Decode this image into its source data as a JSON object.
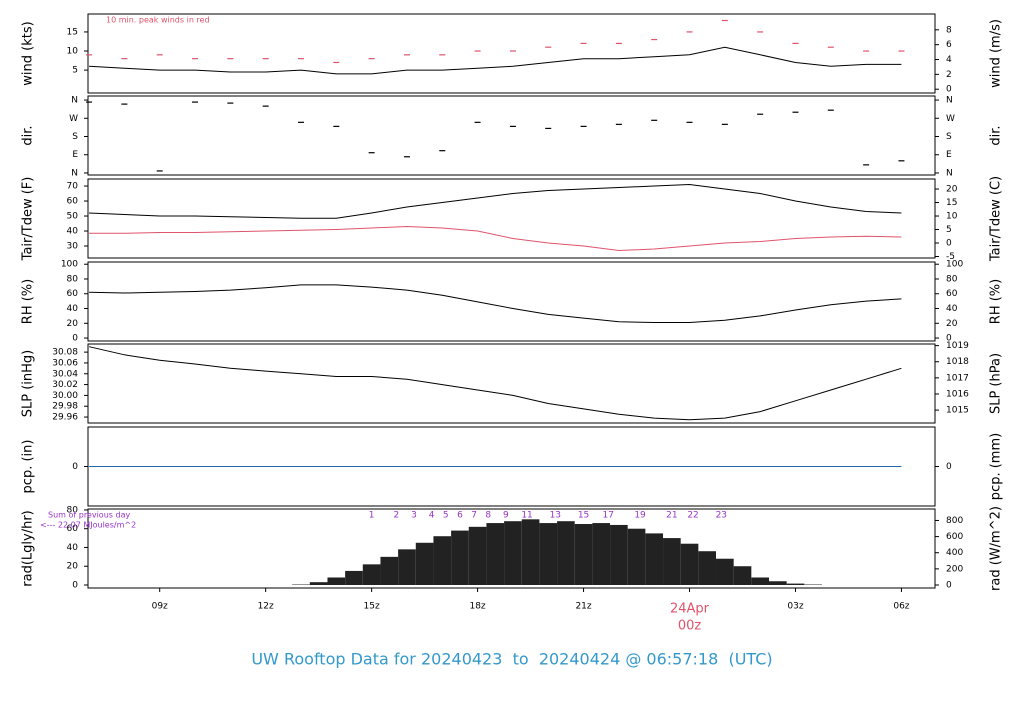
{
  "chart_data": [
    {
      "type": "line",
      "ylabel": "wind (kts)",
      "y2label": "wind (m/s)",
      "annotation": "10 min. peak winds in red",
      "ylim": [
        -1,
        19.7
      ],
      "yticks": [
        5,
        10,
        15
      ],
      "y2lim": [
        -0.51,
        10.13
      ],
      "y2ticks": [
        0,
        2,
        4,
        6,
        8
      ],
      "x": [
        7,
        8,
        9,
        10,
        11,
        12,
        13,
        14,
        15,
        16,
        17,
        18,
        19,
        20,
        21,
        22,
        23,
        24,
        25,
        26,
        27,
        28,
        29,
        30
      ],
      "series": [
        {
          "color": "#000000",
          "marker": "line",
          "values": [
            6,
            5.5,
            5,
            5,
            4.5,
            4.5,
            5,
            4,
            4,
            5,
            5,
            5.5,
            6,
            7,
            8,
            8,
            8.5,
            9,
            11,
            9,
            7,
            6,
            6.5,
            6.5
          ]
        },
        {
          "color": "#df536b",
          "marker": "dash",
          "values": [
            9,
            8,
            9,
            8,
            8,
            8,
            8,
            7,
            8,
            9,
            9,
            10,
            10,
            11,
            12,
            12,
            13,
            15,
            18,
            15,
            12,
            11,
            10,
            10
          ]
        }
      ]
    },
    {
      "type": "scatter",
      "ylabel": "dir.",
      "y2label": "dir.",
      "ylim": [
        -10,
        380
      ],
      "yticks": [
        {
          "value": 0,
          "label": "N"
        },
        {
          "value": 90,
          "label": "E"
        },
        {
          "value": 180,
          "label": "S"
        },
        {
          "value": 270,
          "label": "W"
        },
        {
          "value": 360,
          "label": "N"
        }
      ],
      "y2lim": [
        -10,
        380
      ],
      "y2ticks": [
        {
          "value": 0,
          "label": "N"
        },
        {
          "value": 90,
          "label": "E"
        },
        {
          "value": 180,
          "label": "S"
        },
        {
          "value": 270,
          "label": "W"
        },
        {
          "value": 360,
          "label": "N"
        }
      ],
      "x": [
        7,
        8,
        9,
        10,
        11,
        12,
        13,
        14,
        15,
        16,
        17,
        18,
        19,
        20,
        21,
        22,
        23,
        24,
        25,
        26,
        27,
        28,
        29,
        30
      ],
      "series": [
        {
          "color": "#000000",
          "marker": "dash",
          "values": [
            350,
            340,
            10,
            350,
            345,
            330,
            250,
            230,
            100,
            80,
            110,
            250,
            230,
            220,
            230,
            240,
            260,
            250,
            240,
            290,
            300,
            310,
            40,
            60
          ]
        }
      ]
    },
    {
      "type": "line",
      "ylabel": "Tair/Tdew (F)",
      "y2label": "Tair/Tdew (C)",
      "ylim": [
        22,
        74.7
      ],
      "yticks": [
        30,
        40,
        50,
        60,
        70
      ],
      "y2lim": [
        -5.56,
        23.72
      ],
      "y2ticks": [
        -5,
        0,
        5,
        10,
        15,
        20
      ],
      "x": [
        7,
        8,
        9,
        10,
        11,
        12,
        13,
        14,
        15,
        16,
        17,
        18,
        19,
        20,
        21,
        22,
        23,
        24,
        25,
        26,
        27,
        28,
        29,
        30
      ],
      "series": [
        {
          "color": "#000000",
          "marker": "line",
          "values": [
            52,
            51,
            50,
            50,
            49.5,
            49,
            48.5,
            48.5,
            52,
            56,
            59,
            62,
            65,
            67,
            68,
            69,
            70,
            71,
            68,
            65,
            60,
            56,
            53,
            52
          ]
        },
        {
          "color": "#df536b",
          "marker": "line",
          "values": [
            38.5,
            38.5,
            39,
            39,
            39.5,
            40,
            40.5,
            41,
            42,
            43,
            42,
            40,
            35,
            32,
            30,
            27,
            28,
            30,
            32,
            33,
            35,
            36,
            36.5,
            36
          ]
        }
      ]
    },
    {
      "type": "line",
      "ylabel": "RH (%)",
      "y2label": "RH (%)",
      "ylim": [
        -4,
        103
      ],
      "yticks": [
        0,
        20,
        40,
        60,
        80,
        100
      ],
      "y2lim": [
        -4,
        103
      ],
      "y2ticks": [
        0,
        20,
        40,
        60,
        80,
        100
      ],
      "x": [
        7,
        8,
        9,
        10,
        11,
        12,
        13,
        14,
        15,
        16,
        17,
        18,
        19,
        20,
        21,
        22,
        23,
        24,
        25,
        26,
        27,
        28,
        29,
        30
      ],
      "series": [
        {
          "color": "#000000",
          "marker": "line",
          "values": [
            62,
            61,
            62,
            63,
            65,
            68,
            72,
            72,
            69,
            65,
            58,
            49,
            40,
            32,
            27,
            22,
            21,
            21,
            24,
            30,
            38,
            45,
            50,
            53
          ]
        }
      ]
    },
    {
      "type": "line",
      "ylabel": "SLP (inHg)",
      "y2label": "SLP (hPa)",
      "ylim": [
        29.949,
        30.095
      ],
      "yticks": [
        29.96,
        29.98,
        {
          "value": 30,
          "label": "30.00"
        },
        30.02,
        30.04,
        30.06,
        30.08
      ],
      "y2lim": [
        1014.2,
        1019.1
      ],
      "y2ticks": [
        1015,
        1016,
        1017,
        1018,
        1019
      ],
      "x": [
        7,
        8,
        9,
        10,
        11,
        12,
        13,
        14,
        15,
        16,
        17,
        18,
        19,
        20,
        21,
        22,
        23,
        24,
        25,
        26,
        27,
        28,
        29,
        30
      ],
      "series": [
        {
          "color": "#000000",
          "marker": "line",
          "values": [
            30.09,
            30.075,
            30.065,
            30.058,
            30.05,
            30.045,
            30.04,
            30.035,
            30.035,
            30.03,
            30.02,
            30.01,
            30.0,
            29.985,
            29.975,
            29.965,
            29.958,
            29.955,
            29.958,
            29.97,
            29.99,
            30.01,
            30.03,
            30.05
          ]
        }
      ]
    },
    {
      "type": "line",
      "ylabel": "pcp. (in)",
      "y2label": "pcp. (mm)",
      "ylim": [
        -1,
        1
      ],
      "yticks": [
        0
      ],
      "y2lim": [
        -1,
        1
      ],
      "y2ticks": [
        0
      ],
      "x": [
        7,
        8,
        9,
        10,
        11,
        12,
        13,
        14,
        15,
        16,
        17,
        18,
        19,
        20,
        21,
        22,
        23,
        24,
        25,
        26,
        27,
        28,
        29,
        30
      ],
      "series": [
        {
          "color": "#2166ac",
          "marker": "line",
          "values": [
            0,
            0,
            0,
            0,
            0,
            0,
            0,
            0,
            0,
            0,
            0,
            0,
            0,
            0,
            0,
            0,
            0,
            0,
            0,
            0,
            0,
            0,
            0,
            0
          ]
        }
      ]
    },
    {
      "type": "bar",
      "ylabel": "rad(Lgly/hr)",
      "y2label": "rad (W/m^2)",
      "title": "UW Rooftop Data for 20240423  to  20240424 @ 06:57:18  (UTC)",
      "annotations": [
        "Sum of previous day",
        "<--- 22.07 MJoules/m^2"
      ],
      "date_label": "24Apr",
      "hour_marks": {
        "x": [
          15,
          15.7,
          16.2,
          16.7,
          17.1,
          17.5,
          17.9,
          18.3,
          18.8,
          19.4,
          20.2,
          21,
          21.7,
          22.6,
          23.5,
          24.1,
          24.9
        ],
        "values": [
          1,
          2,
          3,
          4,
          5,
          6,
          7,
          8,
          9,
          11,
          13,
          15,
          17,
          19,
          21,
          22,
          23
        ]
      },
      "xlim": [
        6.97,
        30.95
      ],
      "xticks": [
        {
          "value": 9,
          "label": "09z"
        },
        {
          "value": 12,
          "label": "12z"
        },
        {
          "value": 15,
          "label": "15z"
        },
        {
          "value": 18,
          "label": "18z"
        },
        {
          "value": 21,
          "label": "21z"
        },
        {
          "value": 24,
          "label": "00z"
        },
        {
          "value": 27,
          "label": "03z"
        },
        {
          "value": 30,
          "label": "06z"
        }
      ],
      "ylim": [
        -3.2,
        81
      ],
      "yticks": [
        0,
        20,
        40,
        60,
        80
      ],
      "y2lim": [
        -37,
        942
      ],
      "y2ticks": [
        0,
        200,
        400,
        600,
        800
      ],
      "x": [
        12,
        12.5,
        13,
        13.5,
        14,
        14.5,
        15,
        15.5,
        16,
        16.5,
        17,
        17.5,
        18,
        18.5,
        19,
        19.5,
        20,
        20.5,
        21,
        21.5,
        22,
        22.5,
        23,
        23.5,
        24,
        24.5,
        25,
        25.5,
        26,
        26.5,
        27,
        27.5,
        28
      ],
      "series": [
        {
          "color": "#222222",
          "marker": "bar",
          "values": [
            0,
            0,
            0.5,
            3,
            8,
            15,
            22,
            30,
            38,
            45,
            52,
            58,
            62,
            66,
            68,
            70,
            66,
            68,
            65,
            66,
            64,
            60,
            55,
            50,
            44,
            36,
            28,
            20,
            8,
            4,
            1.5,
            0.5,
            0
          ]
        }
      ]
    }
  ]
}
